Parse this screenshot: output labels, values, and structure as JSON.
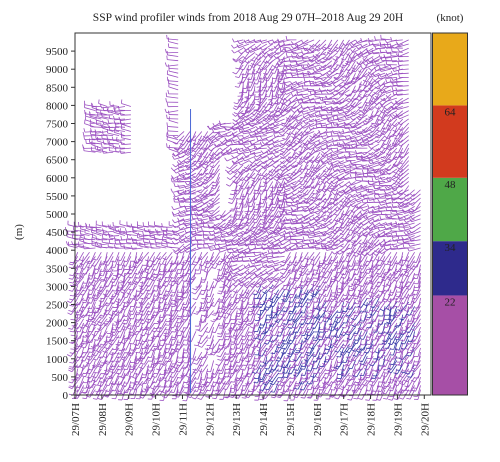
{
  "chart_data": {
    "type": "wind-barb-time-height",
    "title": "SSP wind profiler winds from 2018 Aug 29 07H–2018 Aug 29 20H",
    "ylabel": "(m)",
    "xlabel": "",
    "ylim": [
      0,
      10000
    ],
    "y_ticks": [
      0,
      500,
      1000,
      1500,
      2000,
      2500,
      3000,
      3500,
      4000,
      4500,
      5000,
      5500,
      6000,
      6500,
      7000,
      7500,
      8000,
      8500,
      9000,
      9500
    ],
    "x_ticks": [
      "29/07H",
      "29/08H",
      "29/09H",
      "29/10H",
      "29/11H",
      "29/12H",
      "29/13H",
      "29/14H",
      "29/15H",
      "29/16H",
      "29/17H",
      "29/18H",
      "29/19H",
      "29/20H"
    ],
    "x_hours": [
      7,
      8,
      9,
      10,
      11,
      12,
      13,
      14,
      15,
      16,
      17,
      18,
      19,
      20
    ],
    "xlim_hours": [
      7,
      20.25
    ],
    "grid": false,
    "vertical_marker_hour": 11.3,
    "colorbar": {
      "title": "(knot)",
      "tick_labels": [
        "22",
        "34",
        "48",
        "64"
      ],
      "bands": [
        {
          "from": 0,
          "to": 22,
          "color": "#a64fa6"
        },
        {
          "from": 22,
          "to": 34,
          "color": "#2e2a8c"
        },
        {
          "from": 34,
          "to": 48,
          "color": "#4fa848"
        },
        {
          "from": 48,
          "to": 64,
          "color": "#d23a1e"
        },
        {
          "from": 64,
          "to": 80,
          "color": "#e8a91a"
        }
      ]
    },
    "series": [
      {
        "name": "",
        "color": "#9a4fc0",
        "speed_range_knot": [
          0,
          22
        ]
      },
      {
        "name": "",
        "color": "#3a3aa8",
        "speed_range_knot": [
          22,
          34
        ]
      }
    ],
    "regions": [
      {
        "hours": [
          7.05,
          20.0
        ],
        "heights": [
          100,
          4000
        ],
        "dir_deg": 205,
        "speed_knot": 12
      },
      {
        "hours": [
          7.05,
          11.0
        ],
        "heights": [
          4000,
          4600
        ],
        "dir_deg": 270,
        "speed_knot": 8
      },
      {
        "hours": [
          7.8,
          9.2
        ],
        "heights": [
          6800,
          7900
        ],
        "dir_deg": 280,
        "speed_knot": 8
      },
      {
        "hours": [
          13.0,
          15.0
        ],
        "heights": [
          3000,
          8000
        ],
        "dir_deg": 230,
        "speed_knot": 12
      },
      {
        "hours": [
          14.0,
          16.2
        ],
        "heights": [
          400,
          3000
        ],
        "dir_deg": 210,
        "speed_knot": 26
      },
      {
        "hours": [
          15.0,
          19.7
        ],
        "heights": [
          4000,
          9900
        ],
        "dir_deg": 235,
        "speed_knot": 14
      },
      {
        "hours": [
          16.0,
          20.0
        ],
        "heights": [
          800,
          2600
        ],
        "dir_deg": 215,
        "speed_knot": 24
      }
    ]
  }
}
